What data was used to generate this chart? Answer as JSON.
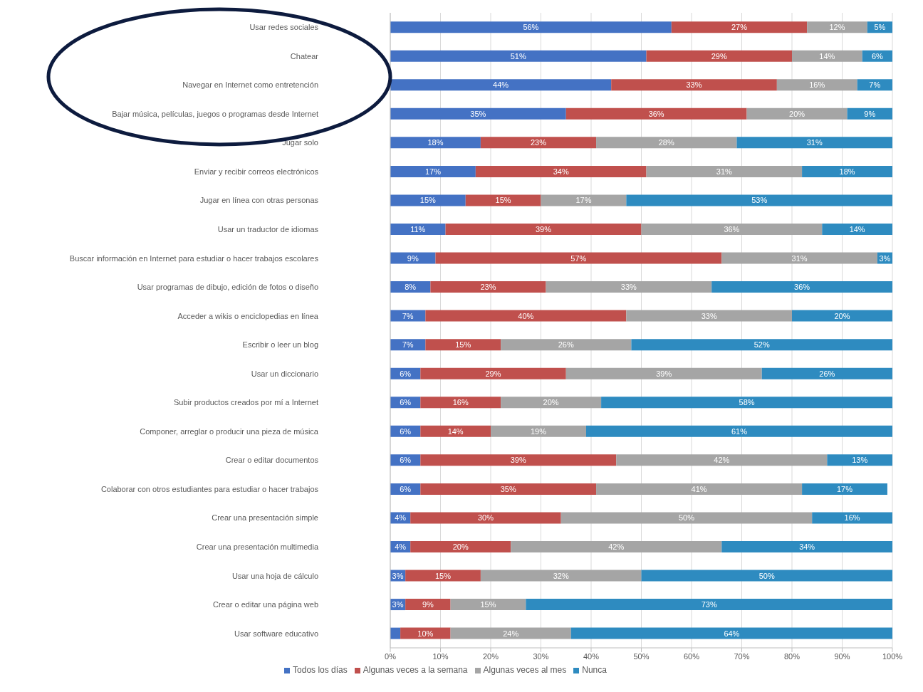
{
  "chart_data": {
    "type": "bar",
    "orientation": "horizontal",
    "stacked": true,
    "categories": [
      "Usar redes sociales",
      "Chatear",
      "Navegar en Internet como entretención",
      "Bajar música, películas, juegos o programas desde Internet",
      "Jugar solo",
      "Enviar y recibir correos electrónicos",
      "Jugar en línea con otras personas",
      "Usar un traductor de idiomas",
      "Buscar información en Internet para estudiar o hacer trabajos escolares",
      "Usar programas de dibujo, edición de fotos o diseño",
      "Acceder a wikis o enciclopedias en línea",
      "Escribir o leer un blog",
      "Usar un diccionario",
      "Subir productos creados por mí a Internet",
      "Componer, arreglar o producir una pieza de música",
      "Crear o editar documentos",
      "Colaborar con otros estudiantes para estudiar o hacer trabajos",
      "Crear una presentación simple",
      "Crear una presentación multimedia",
      "Usar una hoja de cálculo",
      "Crear o editar una página web",
      "Usar software educativo"
    ],
    "series": [
      {
        "name": "Todos los días",
        "color": "#4472c4",
        "values": [
          56,
          51,
          44,
          35,
          18,
          17,
          15,
          11,
          9,
          8,
          7,
          7,
          6,
          6,
          6,
          6,
          6,
          4,
          4,
          3,
          3,
          2
        ],
        "value_labels": [
          "56%",
          "51%",
          "44%",
          "35%",
          "18%",
          "17%",
          "15%",
          "11%",
          "9%",
          "8%",
          "7%",
          "7%",
          "6%",
          "6%",
          "6%",
          "6%",
          "6%",
          "4%",
          "4%",
          "3%",
          "3%",
          null
        ]
      },
      {
        "name": "Algunas veces a la semana",
        "color": "#c0504d",
        "values": [
          27,
          29,
          33,
          36,
          23,
          34,
          15,
          39,
          57,
          23,
          40,
          15,
          29,
          16,
          14,
          39,
          35,
          30,
          20,
          15,
          9,
          10
        ],
        "value_labels": [
          "27%",
          "29%",
          "33%",
          "36%",
          "23%",
          "34%",
          "15%",
          "39%",
          "57%",
          "23%",
          "40%",
          "15%",
          "29%",
          "16%",
          "14%",
          "39%",
          "35%",
          "30%",
          "20%",
          "15%",
          "9%",
          "10%"
        ]
      },
      {
        "name": "Algunas veces al mes",
        "color": "#a5a5a5",
        "values": [
          12,
          14,
          16,
          20,
          28,
          31,
          17,
          36,
          31,
          33,
          33,
          26,
          39,
          20,
          19,
          42,
          41,
          50,
          42,
          32,
          15,
          24
        ],
        "value_labels": [
          "12%",
          "14%",
          "16%",
          "20%",
          "28%",
          "31%",
          "17%",
          "36%",
          "31%",
          "33%",
          "33%",
          "26%",
          "39%",
          "20%",
          "19%",
          "42%",
          "41%",
          "50%",
          "42%",
          "32%",
          "15%",
          "24%"
        ]
      },
      {
        "name": "Nunca",
        "color": "#2e8bc0",
        "values": [
          5,
          6,
          7,
          9,
          31,
          18,
          53,
          14,
          3,
          36,
          20,
          52,
          26,
          58,
          61,
          13,
          17,
          16,
          34,
          50,
          73,
          64
        ],
        "value_labels": [
          "5%",
          "6%",
          "7%",
          "9%",
          "31%",
          "18%",
          "53%",
          "14%",
          "3%",
          "36%",
          "20%",
          "52%",
          "26%",
          "58%",
          "61%",
          "13%",
          "17%",
          "16%",
          "34%",
          "50%",
          "73%",
          "64%"
        ]
      }
    ],
    "xlim": [
      0,
      100
    ],
    "xticks": [
      {
        "value": 0,
        "label": "0%"
      },
      {
        "value": 10,
        "label": "10%"
      },
      {
        "value": 20,
        "label": "20%"
      },
      {
        "value": 30,
        "label": "30%"
      },
      {
        "value": 40,
        "label": "40%"
      },
      {
        "value": 50,
        "label": "50%"
      },
      {
        "value": 60,
        "label": "60%"
      },
      {
        "value": 70,
        "label": "70%"
      },
      {
        "value": 80,
        "label": "80%"
      },
      {
        "value": 90,
        "label": "90%"
      },
      {
        "value": 100,
        "label": "100%"
      }
    ],
    "grid": "x",
    "legend": "bottom"
  }
}
